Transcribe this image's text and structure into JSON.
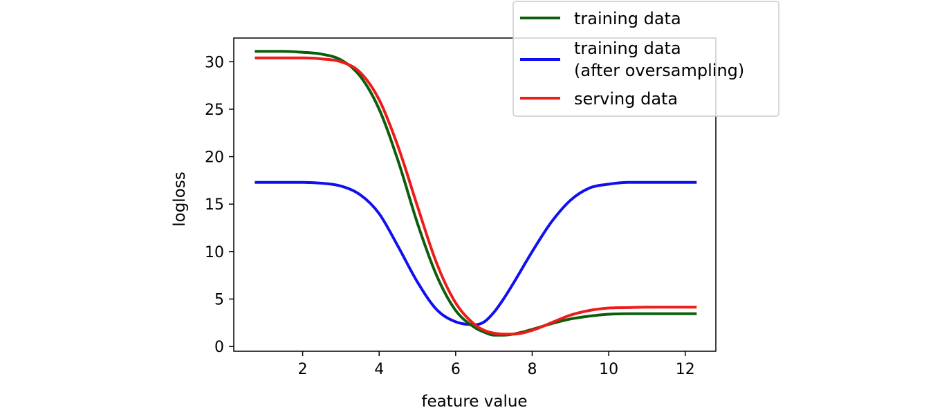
{
  "chart_data": {
    "type": "line",
    "title": "",
    "xlabel": "feature value",
    "ylabel": "logloss",
    "xlim": [
      0.2,
      12.8
    ],
    "ylim": [
      -0.5,
      32.5
    ],
    "xticks": [
      2,
      4,
      6,
      8,
      10,
      12
    ],
    "yticks": [
      0,
      5,
      10,
      15,
      20,
      25,
      30
    ],
    "grid": false,
    "legend_position": "top-right",
    "x": [
      0.75,
      1.5,
      2.0,
      2.5,
      3.0,
      3.5,
      4.0,
      4.5,
      5.0,
      5.5,
      6.0,
      6.5,
      6.75,
      7.0,
      7.25,
      7.5,
      8.0,
      8.5,
      9.0,
      9.5,
      10.0,
      10.5,
      11.0,
      11.5,
      12.3
    ],
    "series": [
      {
        "name": "training data",
        "color": "#0b5e0b",
        "values": [
          31.1,
          31.1,
          31.0,
          30.8,
          30.2,
          28.5,
          25.0,
          19.5,
          13.0,
          7.5,
          3.8,
          2.0,
          1.5,
          1.2,
          1.2,
          1.3,
          1.8,
          2.4,
          2.9,
          3.2,
          3.4,
          3.45,
          3.45,
          3.45,
          3.45
        ]
      },
      {
        "name": "training data\n(after oversampling)",
        "color": "#1010ee",
        "values": [
          17.3,
          17.3,
          17.3,
          17.2,
          16.9,
          16.0,
          14.0,
          10.5,
          6.8,
          3.9,
          2.6,
          2.3,
          2.6,
          3.6,
          5.0,
          6.6,
          10.0,
          13.1,
          15.4,
          16.7,
          17.1,
          17.3,
          17.3,
          17.3,
          17.3
        ]
      },
      {
        "name": "serving data",
        "color": "#ee1b1b",
        "values": [
          30.4,
          30.4,
          30.4,
          30.3,
          30.0,
          28.9,
          26.0,
          21.0,
          14.8,
          8.8,
          4.6,
          2.3,
          1.7,
          1.4,
          1.3,
          1.3,
          1.7,
          2.5,
          3.3,
          3.8,
          4.05,
          4.1,
          4.15,
          4.15,
          4.15
        ]
      }
    ]
  }
}
